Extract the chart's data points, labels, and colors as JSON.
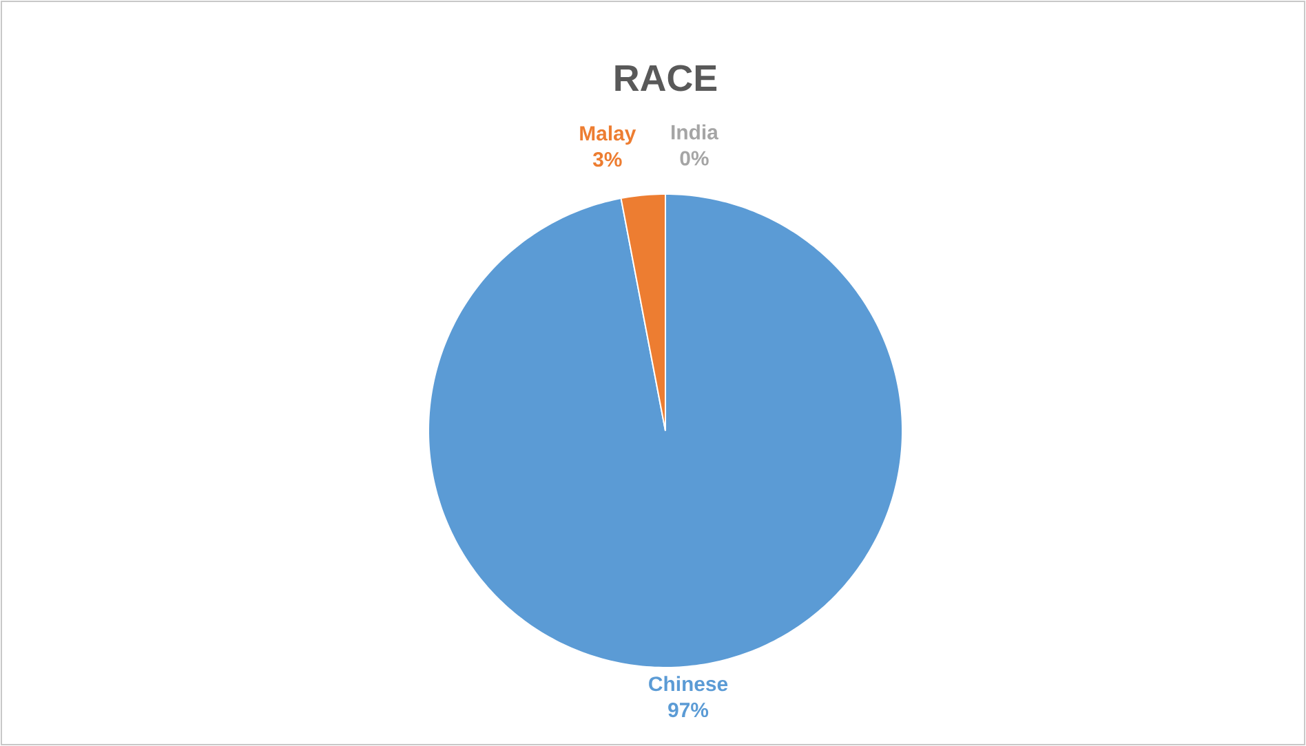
{
  "chart_data": {
    "type": "pie",
    "title": "RACE",
    "categories": [
      "Chinese",
      "Malay",
      "India"
    ],
    "values": [
      97,
      3,
      0
    ],
    "colors": [
      "#5b9bd5",
      "#ed7d31",
      "#a5a5a5"
    ],
    "value_labels": [
      "97%",
      "3%",
      "0%"
    ]
  }
}
